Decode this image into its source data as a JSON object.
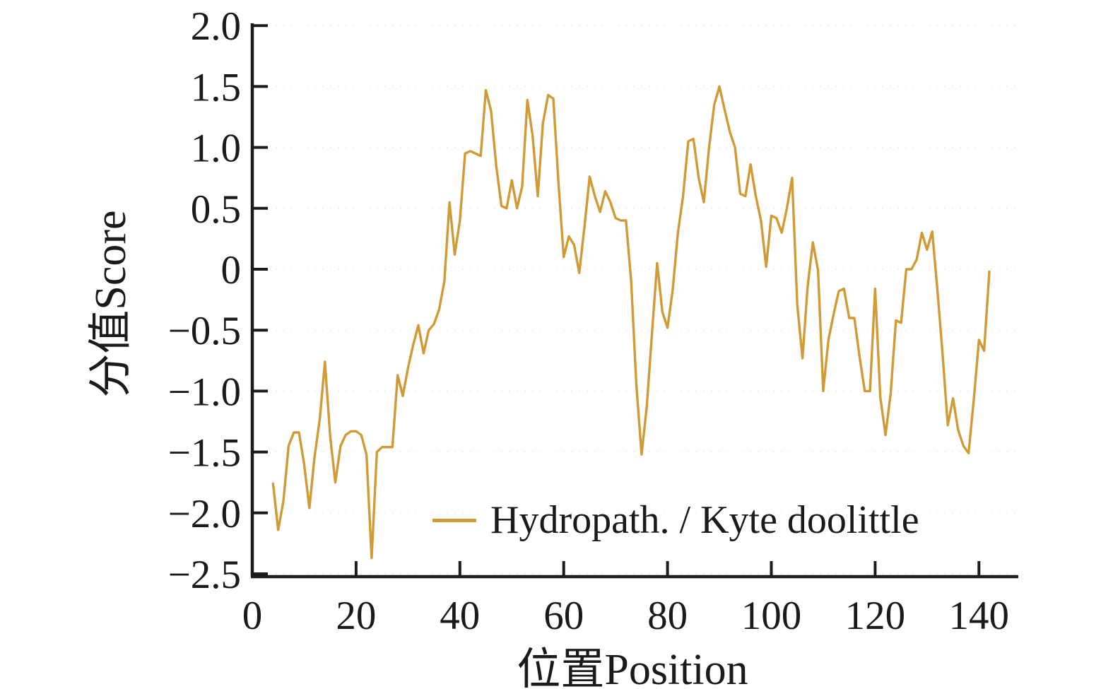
{
  "figure": {
    "background_color": "#ffffff",
    "axis_color": "#1f1b1a",
    "text_color": "#1a1a1a",
    "xlabel": "位置Position",
    "ylabel": "分值Score",
    "legend": {
      "label": "Hydropath. / Kyte doolittle",
      "line_color": "#d09a36",
      "position": "inside lower middle"
    }
  },
  "chart_data": {
    "type": "line",
    "title": "",
    "xlabel": "位置Position",
    "ylabel": "分值Score",
    "xlim": [
      0,
      148
    ],
    "ylim": [
      -2.5,
      2.0
    ],
    "x_ticks": [
      0,
      20,
      40,
      60,
      80,
      100,
      120,
      140
    ],
    "y_ticks": [
      2.0,
      1.5,
      1.0,
      0.5,
      0,
      -0.5,
      -1.0,
      -1.5,
      -2.0,
      -2.5
    ],
    "y_tick_labels": [
      "2.0",
      "1.5",
      "1.0",
      "0.5",
      "0",
      "−0.5",
      "−1.0",
      "−1.5",
      "−2.0",
      "−2.5"
    ],
    "grid": "very faint dotted horizontal lines at each 0.5 step",
    "legend_position": "lower center inside plot",
    "series": [
      {
        "name": "Hydropath. / Kyte doolittle",
        "color": "#d09a36",
        "x": [
          4,
          5,
          6,
          7,
          8,
          9,
          10,
          11,
          12,
          13,
          14,
          15,
          16,
          17,
          18,
          19,
          20,
          21,
          22,
          23,
          24,
          25,
          26,
          27,
          28,
          29,
          30,
          31,
          32,
          33,
          34,
          35,
          36,
          37,
          38,
          39,
          40,
          41,
          42,
          43,
          44,
          45,
          46,
          47,
          48,
          49,
          50,
          51,
          52,
          53,
          54,
          55,
          56,
          57,
          58,
          59,
          60,
          61,
          62,
          63,
          64,
          65,
          66,
          67,
          68,
          69,
          70,
          71,
          72,
          73,
          74,
          75,
          76,
          77,
          78,
          79,
          80,
          81,
          82,
          83,
          84,
          85,
          86,
          87,
          88,
          89,
          90,
          91,
          92,
          93,
          94,
          95,
          96,
          97,
          98,
          99,
          100,
          101,
          102,
          103,
          104,
          105,
          106,
          107,
          108,
          109,
          110,
          111,
          112,
          113,
          114,
          115,
          116,
          117,
          118,
          119,
          120,
          121,
          122,
          123,
          124,
          125,
          126,
          127,
          128,
          129,
          130,
          131,
          132,
          133,
          134,
          135,
          136,
          137,
          138,
          139,
          140,
          141,
          142
        ],
        "y": [
          -1.76,
          -2.14,
          -1.9,
          -1.45,
          -1.34,
          -1.34,
          -1.6,
          -1.96,
          -1.54,
          -1.23,
          -0.76,
          -1.37,
          -1.75,
          -1.45,
          -1.36,
          -1.33,
          -1.33,
          -1.36,
          -1.52,
          -2.37,
          -1.5,
          -1.46,
          -1.46,
          -1.46,
          -0.87,
          -1.04,
          -0.81,
          -0.62,
          -0.46,
          -0.69,
          -0.5,
          -0.45,
          -0.33,
          -0.1,
          0.55,
          0.12,
          0.4,
          0.95,
          0.97,
          0.95,
          0.93,
          1.47,
          1.3,
          0.85,
          0.52,
          0.5,
          0.73,
          0.5,
          0.68,
          1.39,
          1.1,
          0.6,
          1.2,
          1.43,
          1.4,
          0.7,
          0.1,
          0.27,
          0.2,
          -0.03,
          0.35,
          0.76,
          0.6,
          0.47,
          0.64,
          0.55,
          0.42,
          0.4,
          0.4,
          -0.1,
          -0.95,
          -1.52,
          -1.13,
          -0.53,
          0.05,
          -0.35,
          -0.48,
          -0.17,
          0.3,
          0.6,
          1.05,
          1.07,
          0.75,
          0.55,
          1.0,
          1.35,
          1.5,
          1.31,
          1.13,
          1.0,
          0.62,
          0.6,
          0.86,
          0.6,
          0.4,
          0.02,
          0.44,
          0.42,
          0.3,
          0.5,
          0.75,
          -0.29,
          -0.73,
          -0.14,
          0.22,
          -0.01,
          -1.0,
          -0.58,
          -0.37,
          -0.18,
          -0.16,
          -0.4,
          -0.4,
          -0.72,
          -1.0,
          -1.0,
          -0.16,
          -1.05,
          -1.36,
          -1.02,
          -0.42,
          -0.44,
          0.0,
          0.0,
          0.08,
          0.3,
          0.16,
          0.31,
          -0.17,
          -0.7,
          -1.28,
          -1.06,
          -1.32,
          -1.45,
          -1.51,
          -1.07,
          -0.58,
          -0.67,
          -0.02
        ]
      }
    ]
  }
}
